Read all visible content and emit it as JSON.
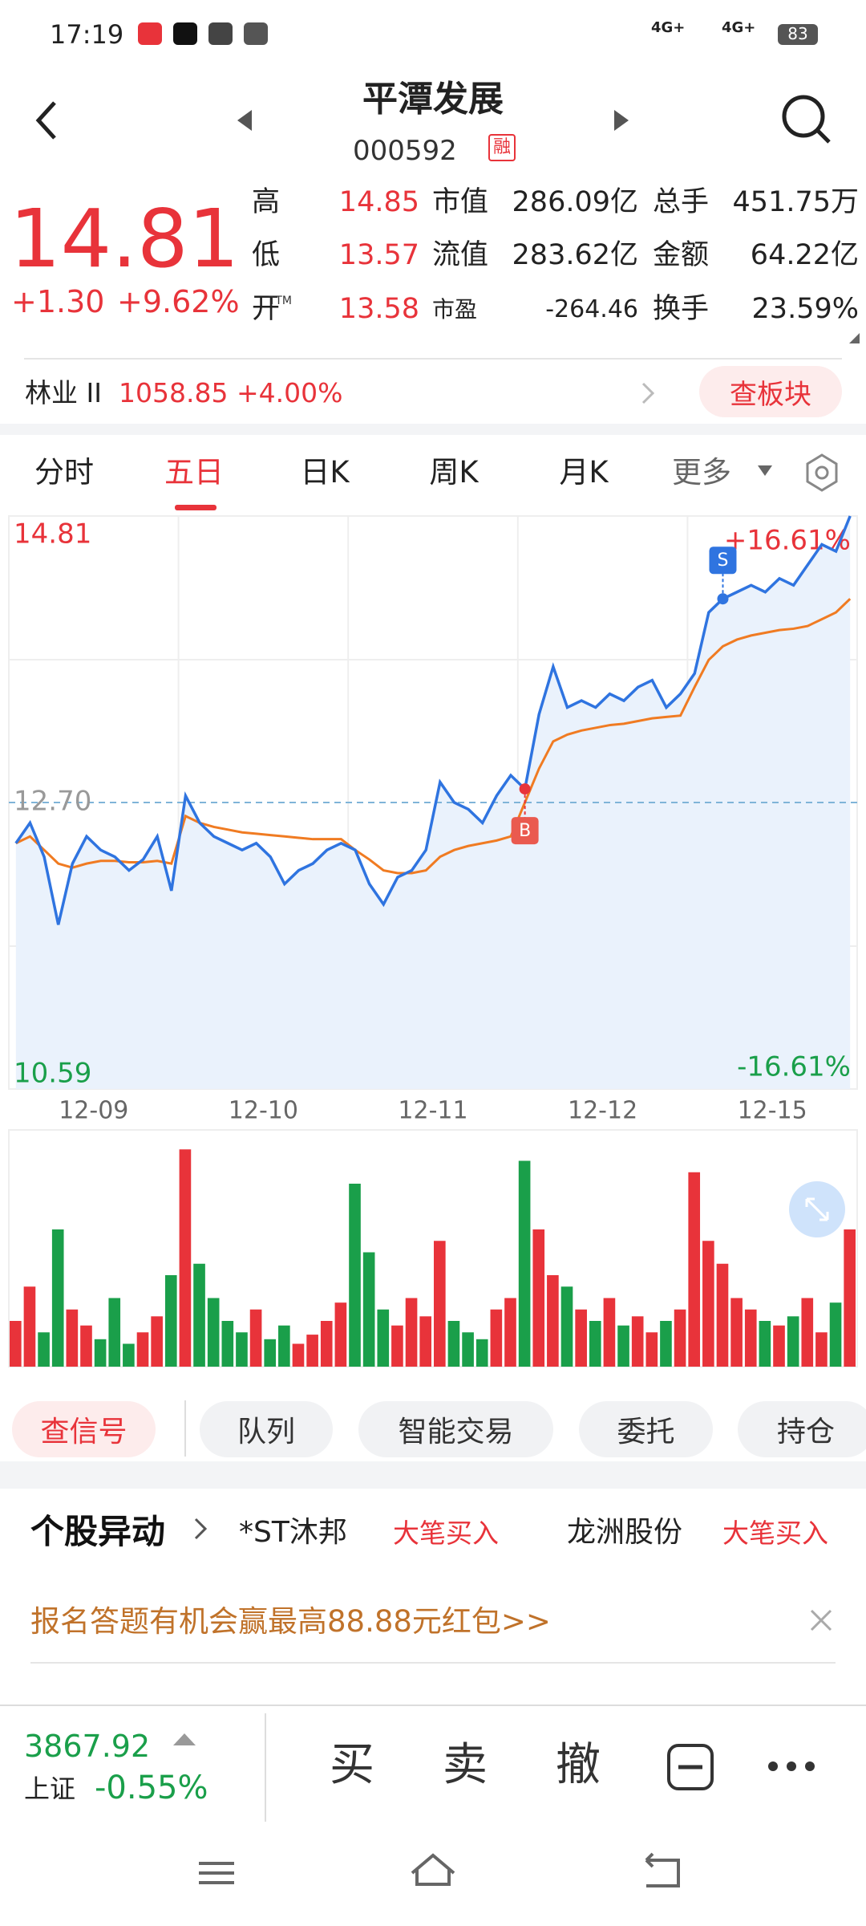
{
  "status": {
    "time": "17:19",
    "net1": "4G+",
    "net2": "4G+",
    "battery": "83"
  },
  "header": {
    "title": "平潭发展",
    "code": "000592",
    "badge": "融"
  },
  "quote": {
    "price": "14.81",
    "change": "+1.30",
    "change_pct": "+9.62%",
    "stats": [
      [
        "高",
        "14.85",
        "市值",
        "286.09亿",
        "总手",
        "451.75万"
      ],
      [
        "低",
        "13.57",
        "流值",
        "283.62亿",
        "金额",
        "64.22亿"
      ],
      [
        "开",
        "13.58",
        "市盈",
        "-264.46",
        "换手",
        "23.59%"
      ]
    ],
    "ttm": "TTM"
  },
  "sector": {
    "name": "林业 II",
    "value": "1058.85 +4.00%",
    "button": "查板块"
  },
  "tabs": [
    "分时",
    "五日",
    "日K",
    "周K",
    "月K",
    "更多"
  ],
  "chart_data": [
    {
      "type": "line",
      "days": [
        "12-09",
        "12-10",
        "12-11",
        "12-12",
        "12-15"
      ],
      "series": [
        {
          "color": "#2f74e0",
          "values": [
            12.4,
            12.55,
            12.3,
            11.8,
            12.25,
            12.45,
            12.35,
            12.3,
            12.2,
            12.28,
            12.45,
            12.05,
            12.75,
            12.55,
            12.45,
            12.4,
            12.35,
            12.4,
            12.3,
            12.1,
            12.2,
            12.25,
            12.35,
            12.4,
            12.35,
            12.1,
            11.95,
            12.15,
            12.2,
            12.35,
            12.85,
            12.7,
            12.65,
            12.55,
            12.75,
            12.9,
            12.8,
            13.35,
            13.7,
            13.4,
            13.45,
            13.4,
            13.5,
            13.45,
            13.55,
            13.6,
            13.4,
            13.5,
            13.65,
            14.1,
            14.2,
            14.25,
            14.3,
            14.25,
            14.35,
            14.3,
            14.45,
            14.6,
            14.55,
            14.81
          ]
        },
        {
          "color": "#f07b22",
          "values": [
            12.4,
            12.45,
            12.35,
            12.25,
            12.22,
            12.25,
            12.27,
            12.27,
            12.26,
            12.26,
            12.27,
            12.25,
            12.6,
            12.55,
            12.52,
            12.5,
            12.48,
            12.47,
            12.46,
            12.45,
            12.44,
            12.43,
            12.43,
            12.43,
            12.35,
            12.28,
            12.2,
            12.18,
            12.18,
            12.2,
            12.3,
            12.35,
            12.38,
            12.4,
            12.42,
            12.45,
            12.7,
            12.95,
            13.15,
            13.2,
            13.23,
            13.25,
            13.27,
            13.28,
            13.3,
            13.32,
            13.33,
            13.34,
            13.55,
            13.75,
            13.85,
            13.9,
            13.93,
            13.95,
            13.97,
            13.98,
            14.0,
            14.05,
            14.1,
            14.2
          ]
        }
      ],
      "ylim": [
        10.59,
        14.81
      ],
      "yticks": [
        14.81,
        {
          "value": 12.7,
          "label": "12.70"
        },
        10.59
      ],
      "y2lim": [
        -16.61,
        16.61
      ],
      "y2ticks": [
        {
          "value": 16.61,
          "label": "+16.61%"
        },
        {
          "value": -16.61,
          "label": "-16.61%"
        }
      ],
      "annotations": [
        {
          "text": "B",
          "index": 36
        },
        {
          "text": "S",
          "index": 50
        }
      ]
    },
    {
      "type": "bar",
      "ylim": [
        0,
        100
      ],
      "up_color": "#e8333a",
      "down_color": "#1a9f4a",
      "values": [
        20,
        35,
        15,
        60,
        25,
        18,
        12,
        30,
        10,
        15,
        22,
        40,
        95,
        45,
        30,
        20,
        15,
        25,
        12,
        18,
        10,
        14,
        20,
        28,
        80,
        50,
        25,
        18,
        30,
        22,
        55,
        20,
        15,
        12,
        25,
        30,
        90,
        60,
        40,
        35,
        25,
        20,
        30,
        18,
        22,
        15,
        20,
        25,
        85,
        55,
        45,
        30,
        25,
        20,
        18,
        22,
        30,
        15,
        28,
        60
      ]
    }
  ],
  "actions": [
    "查信号",
    "队列",
    "智能交易",
    "委托",
    "持仓"
  ],
  "alerts": {
    "title": "个股异动",
    "items": [
      [
        "*ST沐邦",
        "大笔买入"
      ],
      [
        "龙洲股份",
        "大笔买入"
      ]
    ]
  },
  "promo": "报名答题有机会赢最高88.88元红包>>",
  "footer": {
    "index_value": "3867.92",
    "index_name": "上证",
    "index_change": "-0.55%",
    "buttons": [
      "买",
      "卖",
      "撤"
    ]
  }
}
